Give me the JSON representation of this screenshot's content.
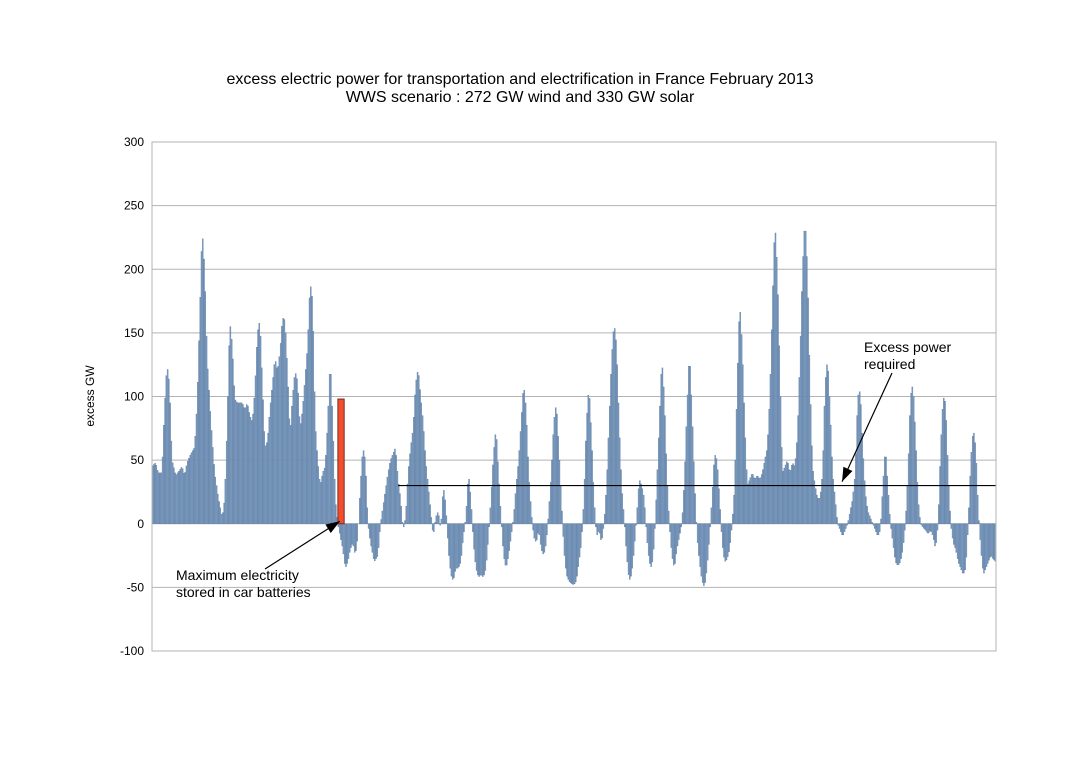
{
  "chart_data": {
    "type": "bar",
    "title": "excess electric power for transportation and electrification in France February 2013",
    "subtitle": "WWS scenario : 272 GW wind and 330 GW solar",
    "xlabel": "",
    "ylabel": "excess GW",
    "ylim": [
      -100,
      300
    ],
    "yticks": [
      300,
      250,
      200,
      150,
      100,
      50,
      0,
      -50,
      -100
    ],
    "grid": true,
    "legend": "none",
    "series_color": "#7f9fc4",
    "series_edge_color": "#4f6f96",
    "hour_index_range": [
      0,
      672
    ],
    "profile_keypoints": [
      [
        0,
        45
      ],
      [
        3,
        48
      ],
      [
        5,
        40
      ],
      [
        8,
        40
      ],
      [
        10,
        90
      ],
      [
        12,
        125
      ],
      [
        14,
        110
      ],
      [
        16,
        50
      ],
      [
        19,
        38
      ],
      [
        22,
        42
      ],
      [
        24,
        45
      ],
      [
        26,
        38
      ],
      [
        28,
        48
      ],
      [
        31,
        55
      ],
      [
        34,
        60
      ],
      [
        36,
        95
      ],
      [
        38,
        160
      ],
      [
        40,
        232
      ],
      [
        42,
        200
      ],
      [
        44,
        130
      ],
      [
        47,
        80
      ],
      [
        50,
        40
      ],
      [
        53,
        20
      ],
      [
        56,
        5
      ],
      [
        58,
        20
      ],
      [
        60,
        80
      ],
      [
        62,
        160
      ],
      [
        64,
        140
      ],
      [
        66,
        98
      ],
      [
        68,
        95
      ],
      [
        70,
        95
      ],
      [
        72,
        95
      ],
      [
        74,
        90
      ],
      [
        76,
        95
      ],
      [
        78,
        85
      ],
      [
        80,
        80
      ],
      [
        82,
        105
      ],
      [
        84,
        150
      ],
      [
        86,
        160
      ],
      [
        88,
        110
      ],
      [
        90,
        60
      ],
      [
        92,
        65
      ],
      [
        94,
        90
      ],
      [
        96,
        110
      ],
      [
        98,
        130
      ],
      [
        100,
        120
      ],
      [
        102,
        135
      ],
      [
        104,
        162
      ],
      [
        106,
        160
      ],
      [
        108,
        120
      ],
      [
        110,
        70
      ],
      [
        112,
        100
      ],
      [
        114,
        120
      ],
      [
        116,
        112
      ],
      [
        118,
        75
      ],
      [
        120,
        90
      ],
      [
        122,
        115
      ],
      [
        124,
        140
      ],
      [
        126,
        190
      ],
      [
        128,
        175
      ],
      [
        130,
        80
      ],
      [
        132,
        50
      ],
      [
        134,
        30
      ],
      [
        136,
        40
      ],
      [
        138,
        45
      ],
      [
        140,
        80
      ],
      [
        142,
        130
      ],
      [
        144,
        80
      ],
      [
        146,
        20
      ],
      [
        148,
        0
      ],
      [
        150,
        -10
      ],
      [
        152,
        -20
      ],
      [
        154,
        -35
      ],
      [
        156,
        -30
      ],
      [
        158,
        -20
      ],
      [
        160,
        -15
      ],
      [
        162,
        -25
      ],
      [
        164,
        -10
      ],
      [
        166,
        30
      ],
      [
        168,
        60
      ],
      [
        170,
        50
      ],
      [
        172,
        0
      ],
      [
        174,
        -15
      ],
      [
        177,
        -30
      ],
      [
        180,
        -25
      ],
      [
        182,
        0
      ],
      [
        185,
        20
      ],
      [
        188,
        40
      ],
      [
        190,
        50
      ],
      [
        192,
        55
      ],
      [
        194,
        60
      ],
      [
        196,
        35
      ],
      [
        198,
        20
      ],
      [
        200,
        -5
      ],
      [
        202,
        5
      ],
      [
        204,
        40
      ],
      [
        206,
        60
      ],
      [
        208,
        75
      ],
      [
        210,
        110
      ],
      [
        212,
        122
      ],
      [
        214,
        100
      ],
      [
        216,
        80
      ],
      [
        218,
        50
      ],
      [
        220,
        30
      ],
      [
        222,
        10
      ],
      [
        224,
        -10
      ],
      [
        226,
        5
      ],
      [
        228,
        10
      ],
      [
        230,
        -5
      ],
      [
        232,
        30
      ],
      [
        234,
        15
      ],
      [
        236,
        -20
      ],
      [
        238,
        -40
      ],
      [
        240,
        -45
      ],
      [
        242,
        -35
      ],
      [
        244,
        -35
      ],
      [
        246,
        -30
      ],
      [
        248,
        -10
      ],
      [
        250,
        5
      ],
      [
        252,
        40
      ],
      [
        254,
        20
      ],
      [
        256,
        -15
      ],
      [
        258,
        -35
      ],
      [
        260,
        -42
      ],
      [
        262,
        -40
      ],
      [
        264,
        -42
      ],
      [
        266,
        -35
      ],
      [
        268,
        -10
      ],
      [
        270,
        20
      ],
      [
        272,
        55
      ],
      [
        274,
        75
      ],
      [
        276,
        40
      ],
      [
        278,
        5
      ],
      [
        280,
        -25
      ],
      [
        282,
        -35
      ],
      [
        284,
        -25
      ],
      [
        286,
        -10
      ],
      [
        288,
        5
      ],
      [
        290,
        30
      ],
      [
        292,
        50
      ],
      [
        294,
        80
      ],
      [
        296,
        110
      ],
      [
        298,
        90
      ],
      [
        300,
        40
      ],
      [
        302,
        10
      ],
      [
        304,
        -10
      ],
      [
        306,
        -15
      ],
      [
        308,
        -5
      ],
      [
        310,
        -20
      ],
      [
        312,
        -25
      ],
      [
        314,
        -15
      ],
      [
        316,
        10
      ],
      [
        318,
        40
      ],
      [
        320,
        80
      ],
      [
        322,
        95
      ],
      [
        324,
        60
      ],
      [
        326,
        20
      ],
      [
        328,
        -20
      ],
      [
        330,
        -40
      ],
      [
        332,
        -45
      ],
      [
        334,
        -47
      ],
      [
        336,
        -48
      ],
      [
        338,
        -45
      ],
      [
        340,
        -30
      ],
      [
        342,
        -15
      ],
      [
        344,
        20
      ],
      [
        346,
        80
      ],
      [
        348,
        108
      ],
      [
        350,
        70
      ],
      [
        352,
        20
      ],
      [
        354,
        -10
      ],
      [
        356,
        -5
      ],
      [
        358,
        -15
      ],
      [
        360,
        0
      ],
      [
        362,
        30
      ],
      [
        364,
        80
      ],
      [
        366,
        130
      ],
      [
        368,
        158
      ],
      [
        370,
        140
      ],
      [
        372,
        80
      ],
      [
        374,
        30
      ],
      [
        376,
        5
      ],
      [
        378,
        -25
      ],
      [
        380,
        -45
      ],
      [
        382,
        -40
      ],
      [
        384,
        -20
      ],
      [
        386,
        5
      ],
      [
        388,
        35
      ],
      [
        390,
        30
      ],
      [
        392,
        20
      ],
      [
        394,
        -10
      ],
      [
        396,
        -30
      ],
      [
        398,
        -35
      ],
      [
        400,
        -15
      ],
      [
        402,
        30
      ],
      [
        404,
        80
      ],
      [
        406,
        130
      ],
      [
        408,
        100
      ],
      [
        410,
        40
      ],
      [
        412,
        0
      ],
      [
        414,
        -25
      ],
      [
        416,
        -35
      ],
      [
        418,
        -20
      ],
      [
        420,
        -10
      ],
      [
        422,
        0
      ],
      [
        424,
        35
      ],
      [
        426,
        90
      ],
      [
        428,
        135
      ],
      [
        430,
        90
      ],
      [
        432,
        35
      ],
      [
        434,
        -10
      ],
      [
        436,
        -30
      ],
      [
        438,
        -45
      ],
      [
        440,
        -50
      ],
      [
        442,
        -35
      ],
      [
        444,
        -10
      ],
      [
        446,
        20
      ],
      [
        448,
        55
      ],
      [
        450,
        50
      ],
      [
        452,
        20
      ],
      [
        454,
        -15
      ],
      [
        456,
        -30
      ],
      [
        458,
        -28
      ],
      [
        460,
        -20
      ],
      [
        462,
        0
      ],
      [
        464,
        30
      ],
      [
        466,
        110
      ],
      [
        468,
        175
      ],
      [
        470,
        140
      ],
      [
        472,
        80
      ],
      [
        474,
        30
      ],
      [
        476,
        35
      ],
      [
        478,
        40
      ],
      [
        480,
        35
      ],
      [
        482,
        38
      ],
      [
        484,
        35
      ],
      [
        486,
        40
      ],
      [
        488,
        50
      ],
      [
        490,
        60
      ],
      [
        492,
        100
      ],
      [
        494,
        170
      ],
      [
        496,
        238
      ],
      [
        498,
        200
      ],
      [
        500,
        120
      ],
      [
        502,
        40
      ],
      [
        504,
        45
      ],
      [
        506,
        50
      ],
      [
        508,
        40
      ],
      [
        510,
        48
      ],
      [
        512,
        45
      ],
      [
        514,
        70
      ],
      [
        516,
        130
      ],
      [
        518,
        200
      ],
      [
        520,
        240
      ],
      [
        522,
        200
      ],
      [
        524,
        110
      ],
      [
        526,
        45
      ],
      [
        528,
        30
      ],
      [
        530,
        20
      ],
      [
        532,
        20
      ],
      [
        534,
        40
      ],
      [
        536,
        110
      ],
      [
        538,
        130
      ],
      [
        540,
        90
      ],
      [
        542,
        40
      ],
      [
        544,
        20
      ],
      [
        546,
        0
      ],
      [
        548,
        -5
      ],
      [
        550,
        -10
      ],
      [
        552,
        -5
      ],
      [
        554,
        0
      ],
      [
        556,
        10
      ],
      [
        558,
        20
      ],
      [
        560,
        40
      ],
      [
        562,
        100
      ],
      [
        564,
        105
      ],
      [
        566,
        60
      ],
      [
        568,
        25
      ],
      [
        570,
        10
      ],
      [
        572,
        5
      ],
      [
        574,
        0
      ],
      [
        576,
        -5
      ],
      [
        578,
        -10
      ],
      [
        580,
        -5
      ],
      [
        582,
        30
      ],
      [
        584,
        60
      ],
      [
        586,
        30
      ],
      [
        588,
        0
      ],
      [
        590,
        -15
      ],
      [
        592,
        -30
      ],
      [
        594,
        -33
      ],
      [
        596,
        -30
      ],
      [
        598,
        -20
      ],
      [
        600,
        0
      ],
      [
        602,
        40
      ],
      [
        604,
        100
      ],
      [
        606,
        110
      ],
      [
        608,
        70
      ],
      [
        610,
        20
      ],
      [
        612,
        0
      ],
      [
        614,
        -3
      ],
      [
        616,
        -5
      ],
      [
        618,
        -8
      ],
      [
        620,
        -5
      ],
      [
        622,
        -10
      ],
      [
        624,
        -20
      ],
      [
        626,
        0
      ],
      [
        628,
        60
      ],
      [
        630,
        100
      ],
      [
        632,
        95
      ],
      [
        634,
        40
      ],
      [
        636,
        0
      ],
      [
        638,
        -15
      ],
      [
        640,
        -20
      ],
      [
        642,
        -30
      ],
      [
        644,
        -35
      ],
      [
        646,
        -40
      ],
      [
        648,
        -35
      ],
      [
        650,
        0
      ],
      [
        652,
        50
      ],
      [
        654,
        75
      ],
      [
        656,
        60
      ],
      [
        658,
        10
      ],
      [
        660,
        -20
      ],
      [
        662,
        -40
      ],
      [
        664,
        -35
      ],
      [
        666,
        -30
      ],
      [
        668,
        -25
      ],
      [
        670,
        -28
      ],
      [
        672,
        -30
      ]
    ],
    "battery_bar": {
      "label": "Maximum electricity stored in car batteries",
      "value": 98,
      "color": "#f04e2f",
      "edge_color": "#7a2a1a",
      "hour_index_range": [
        148,
        153
      ]
    },
    "required_line": {
      "label": "Excess power required",
      "value": 30,
      "color": "#000000",
      "hour_index_range": [
        196,
        672
      ]
    },
    "annotations": [
      {
        "id": "battery",
        "lines": [
          "Maximum electricity",
          "stored in car batteries"
        ]
      },
      {
        "id": "required",
        "lines": [
          "Excess power",
          "required"
        ]
      }
    ]
  }
}
